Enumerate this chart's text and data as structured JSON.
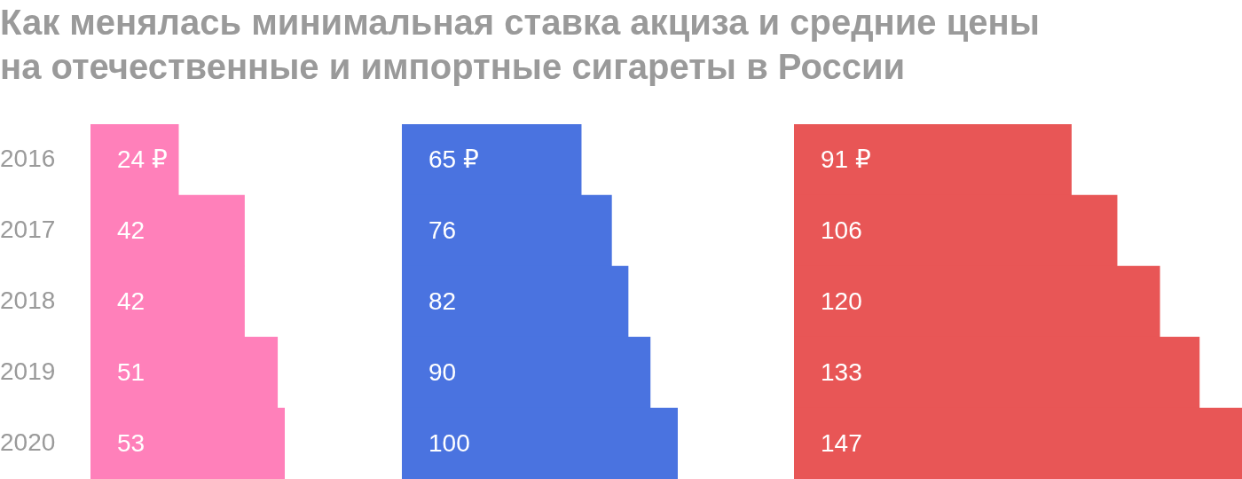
{
  "chart_data": [
    {
      "type": "bar",
      "orientation": "horizontal",
      "title": "Как менялась минимальная ставка акциза и средние цены на отечественные и импортные сигареты в России",
      "categories": [
        "2016",
        "2017",
        "2018",
        "2019",
        "2020"
      ],
      "series": [
        {
          "color": "#ff80ba",
          "values": [
            24,
            42,
            42,
            51,
            53
          ],
          "value_labels": [
            "24 ₽",
            "42",
            "42",
            "51",
            "53"
          ]
        }
      ],
      "tick_labels": "y"
    },
    {
      "type": "bar",
      "orientation": "horizontal",
      "categories": [
        "2016",
        "2017",
        "2018",
        "2019",
        "2020"
      ],
      "series": [
        {
          "color": "#4a73e0",
          "values": [
            65,
            76,
            82,
            90,
            100
          ],
          "value_labels": [
            "65 ₽",
            "76",
            "82",
            "90",
            "100"
          ]
        }
      ],
      "tick_labels": false
    },
    {
      "type": "bar",
      "orientation": "horizontal",
      "categories": [
        "2016",
        "2017",
        "2018",
        "2019",
        "2020"
      ],
      "series": [
        {
          "color": "#e85656",
          "values": [
            91,
            106,
            120,
            133,
            147
          ],
          "value_labels": [
            "91 ₽",
            "106",
            "120",
            "133",
            "147"
          ]
        }
      ],
      "tick_labels": false
    }
  ]
}
